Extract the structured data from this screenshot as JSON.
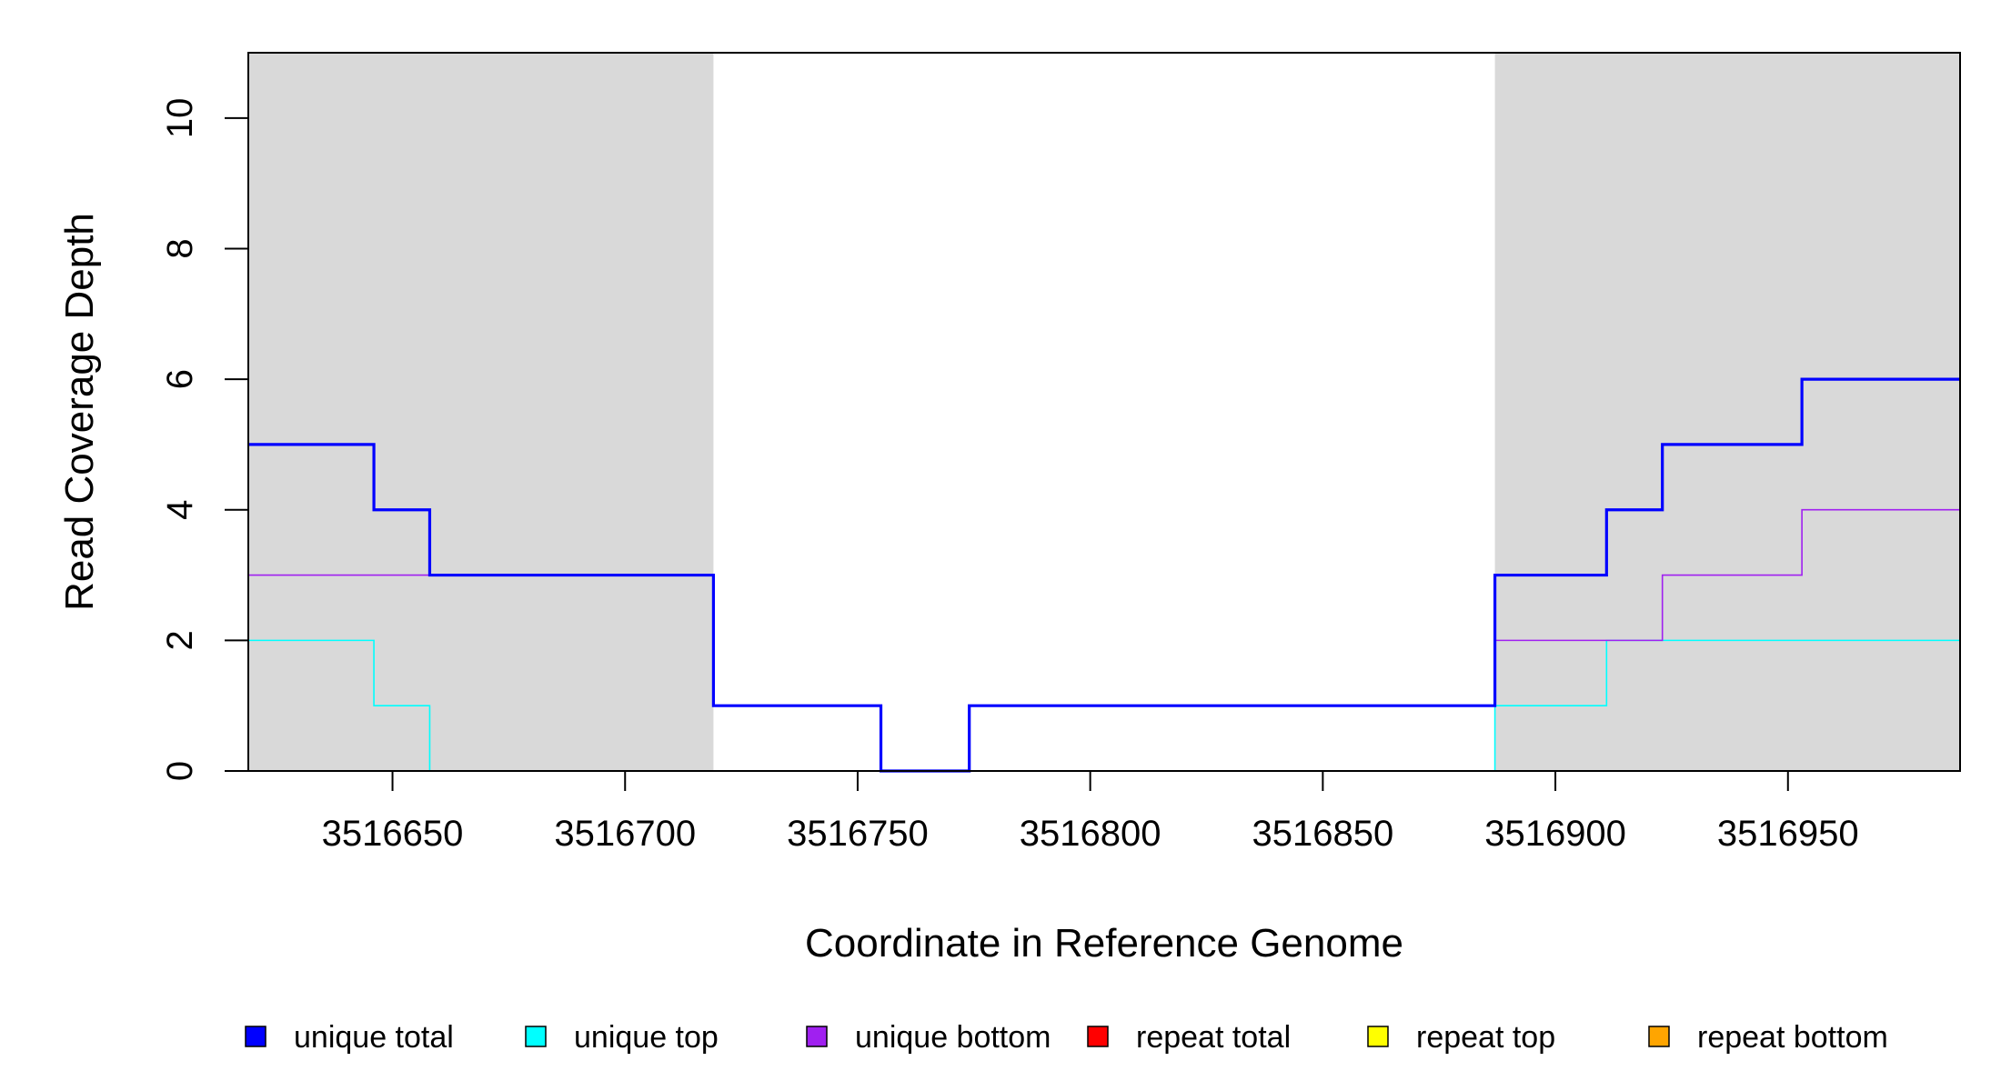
{
  "chart_data": {
    "type": "line",
    "step": true,
    "xlabel": "Coordinate in Reference Genome",
    "ylabel": "Read Coverage Depth",
    "xlim": [
      3516619,
      3516987
    ],
    "ylim": [
      0,
      11
    ],
    "x_ticks": [
      3516650,
      3516700,
      3516750,
      3516800,
      3516850,
      3516900,
      3516950
    ],
    "y_ticks": [
      0,
      2,
      4,
      6,
      8,
      10
    ],
    "x_tick_labels": [
      "3516650",
      "3516700",
      "3516750",
      "3516800",
      "3516850",
      "3516900",
      "3516950"
    ],
    "y_tick_labels": [
      "0",
      "2",
      "4",
      "6",
      "8",
      "10"
    ],
    "shaded_regions": [
      {
        "x0": 3516619,
        "x1": 3516719,
        "color": "#d9d9d9"
      },
      {
        "x0": 3516887,
        "x1": 3516987,
        "color": "#d9d9d9"
      }
    ],
    "legend_position": "bottom",
    "series": [
      {
        "name": "unique total",
        "color": "#0000ff",
        "x": [
          3516619,
          3516646,
          3516658,
          3516719,
          3516755,
          3516774,
          3516887,
          3516911,
          3516923,
          3516953,
          3516987
        ],
        "y": [
          5,
          4,
          3,
          1,
          0,
          1,
          3,
          4,
          5,
          6,
          6
        ]
      },
      {
        "name": "unique top",
        "color": "#00ffff",
        "x": [
          3516619,
          3516646,
          3516658,
          3516887,
          3516911,
          3516987
        ],
        "y": [
          2,
          1,
          0,
          1,
          2,
          2
        ]
      },
      {
        "name": "unique bottom",
        "color": "#a020f0",
        "x": [
          3516619,
          3516719,
          3516755,
          3516774,
          3516887,
          3516923,
          3516953,
          3516987
        ],
        "y": [
          3,
          1,
          0,
          1,
          2,
          3,
          4,
          4
        ]
      },
      {
        "name": "repeat total",
        "color": "#ff0000",
        "x": [
          3516619,
          3516987
        ],
        "y": [
          0,
          0
        ]
      },
      {
        "name": "repeat top",
        "color": "#ffff00",
        "x": [
          3516619,
          3516987
        ],
        "y": [
          0,
          0
        ]
      },
      {
        "name": "repeat bottom",
        "color": "#ffa500",
        "x": [
          3516619,
          3516987
        ],
        "y": [
          0,
          0
        ]
      }
    ]
  }
}
